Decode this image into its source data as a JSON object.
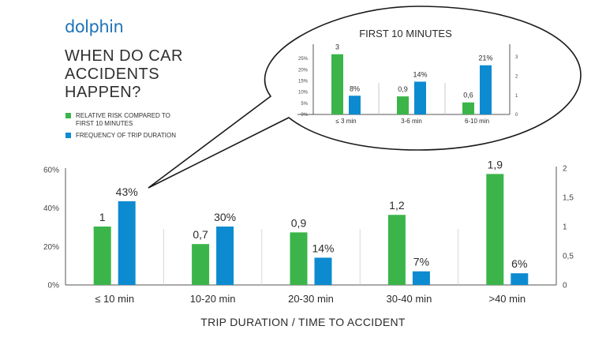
{
  "brand": {
    "logo": "dolphin"
  },
  "header": {
    "title_lines": [
      "WHEN DO CAR",
      "ACCIDENTS",
      "HAPPEN?"
    ]
  },
  "legend": [
    {
      "label_lines": [
        "RELATIVE RISK COMPARED TO",
        "FIRST 10 MINUTES"
      ],
      "color": "#3bb54a"
    },
    {
      "label_lines": [
        "FREQUENCY OF TRIP DURATION"
      ],
      "color": "#0d8bd0"
    }
  ],
  "colors": {
    "green": "#3bb54a",
    "blue": "#0d8bd0",
    "axis": "#555555",
    "text": "#2b2b2b"
  },
  "chart_data": [
    {
      "type": "bar",
      "title": "",
      "xlabel": "TRIP DURATION / TIME TO ACCIDENT",
      "categories": [
        "≤ 10 min",
        "10-20 min",
        "20-30 min",
        "30-40 min",
        ">40 min"
      ],
      "series": [
        {
          "name": "RELATIVE RISK COMPARED TO FIRST 10 MINUTES",
          "axis": "right",
          "values": [
            1,
            0.7,
            0.9,
            1.2,
            1.9
          ],
          "labels": [
            "1",
            "0,7",
            "0,9",
            "1,2",
            "1,9"
          ],
          "color": "#3bb54a"
        },
        {
          "name": "FREQUENCY OF TRIP DURATION",
          "axis": "left",
          "values": [
            43,
            30,
            14,
            7,
            6
          ],
          "labels": [
            "43%",
            "30%",
            "14%",
            "7%",
            "6%"
          ],
          "color": "#0d8bd0"
        }
      ],
      "left_axis": {
        "ticks": [
          "0%",
          "20%",
          "40%",
          "60%"
        ],
        "ylim": [
          0,
          60
        ]
      },
      "right_axis": {
        "ticks": [
          "0",
          "0,5",
          "1",
          "1,5",
          "2"
        ],
        "ylim": [
          0,
          2
        ]
      },
      "legend_position": "top-left",
      "grid": false
    },
    {
      "type": "bar",
      "title": "FIRST 10 MINUTES",
      "categories": [
        "≤ 3 min",
        "3-6 min",
        "6-10 min"
      ],
      "series": [
        {
          "name": "RELATIVE RISK COMPARED TO FIRST 10 MINUTES",
          "axis": "right",
          "values": [
            3,
            0.9,
            0.6
          ],
          "labels": [
            "3",
            "0,9",
            "0,6"
          ],
          "color": "#3bb54a"
        },
        {
          "name": "FREQUENCY OF TRIP DURATION",
          "axis": "left",
          "values": [
            8,
            14,
            21
          ],
          "labels": [
            "8%",
            "14%",
            "21%"
          ],
          "color": "#0d8bd0"
        }
      ],
      "left_axis": {
        "ticks": [
          "0%",
          "5%",
          "10%",
          "15%",
          "20%",
          "25%"
        ],
        "ylim": [
          0,
          30
        ]
      },
      "right_axis": {
        "ticks": [
          "0",
          "1",
          "2",
          "3"
        ],
        "ylim": [
          0,
          3.5
        ]
      },
      "grid": false
    }
  ]
}
